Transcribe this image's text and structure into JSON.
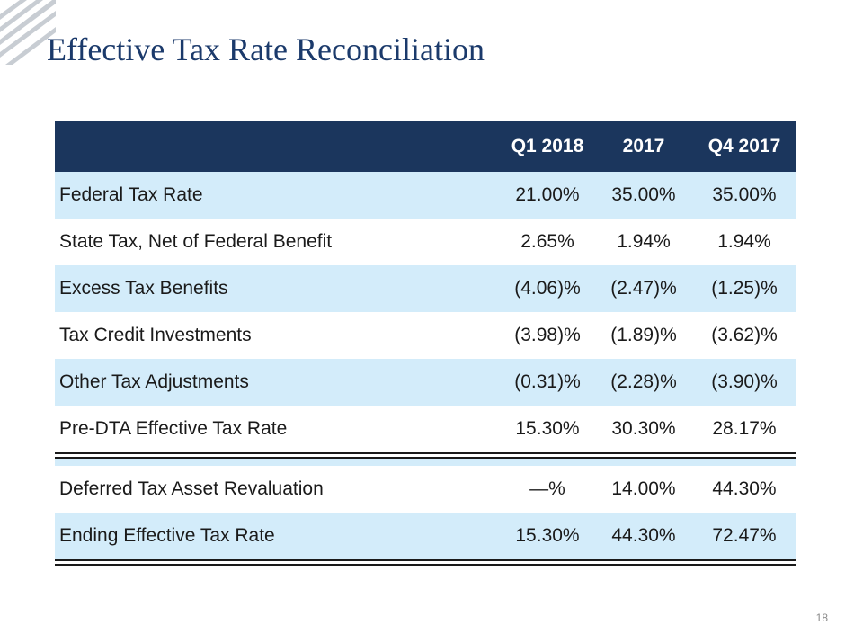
{
  "slide": {
    "title": "Effective Tax Rate Reconciliation",
    "page_number": "18"
  },
  "table": {
    "headers": [
      "",
      "Q1 2018",
      "2017",
      "Q4 2017"
    ],
    "rows": [
      {
        "label": "Federal Tax Rate",
        "values": [
          "21.00%",
          "35.00%",
          "35.00%"
        ]
      },
      {
        "label": "State Tax, Net of Federal Benefit",
        "values": [
          "2.65%",
          "1.94%",
          "1.94%"
        ]
      },
      {
        "label": "Excess Tax Benefits",
        "values": [
          "(4.06)%",
          "(2.47)%",
          "(1.25)%"
        ]
      },
      {
        "label": "Tax Credit Investments",
        "values": [
          "(3.98)%",
          "(1.89)%",
          "(3.62)%"
        ]
      },
      {
        "label": "Other Tax Adjustments",
        "values": [
          "(0.31)%",
          "(2.28)%",
          "(3.90)%"
        ]
      },
      {
        "label": "Pre-DTA Effective Tax Rate",
        "values": [
          "15.30%",
          "30.30%",
          "28.17%"
        ]
      },
      {
        "label": "Deferred Tax Asset Revaluation",
        "values": [
          "—%",
          "14.00%",
          "44.30%"
        ]
      },
      {
        "label": "Ending Effective Tax Rate",
        "values": [
          "15.30%",
          "44.30%",
          "72.47%"
        ]
      }
    ]
  },
  "colors": {
    "header_bg": "#1b365d",
    "row_shade": "#d3ecfa",
    "title": "#1b3a6b"
  }
}
